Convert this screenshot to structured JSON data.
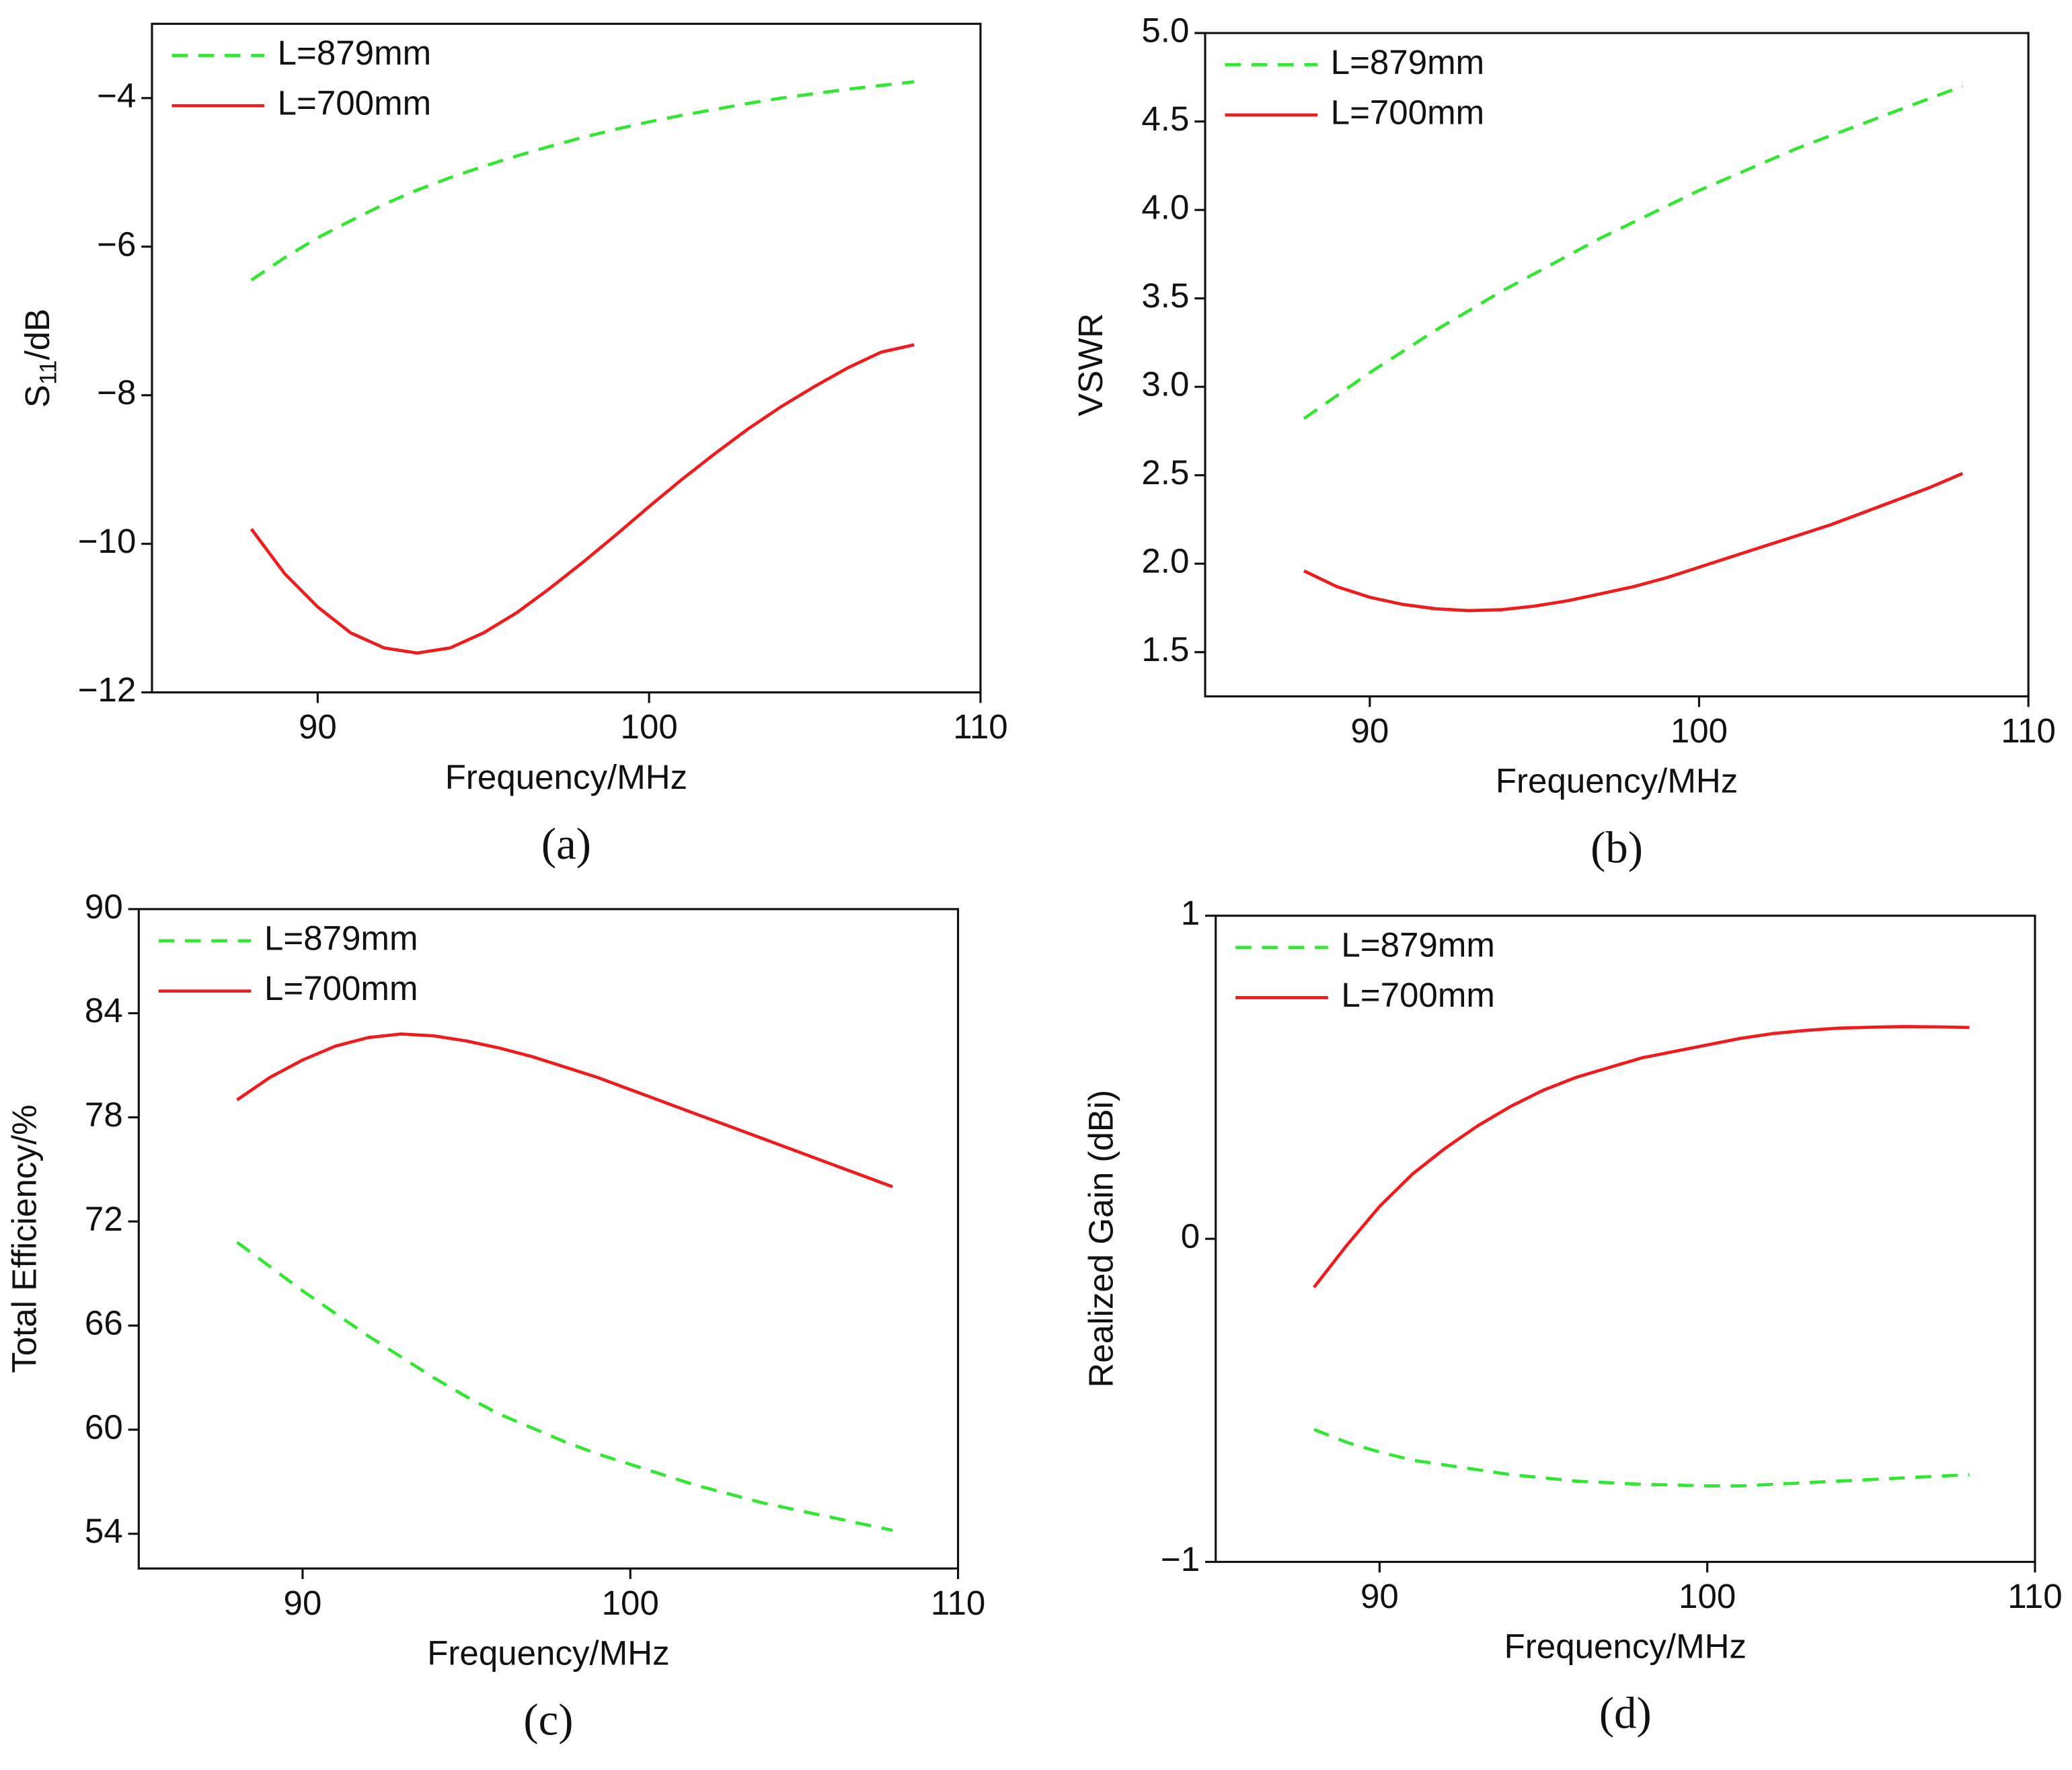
{
  "chart_data": [
    {
      "type": "line",
      "panel": "(a)",
      "xlabel": "Frequency/MHz",
      "ylabel": [
        "S",
        "11",
        "/dB"
      ],
      "x": [
        88,
        89,
        90,
        91,
        92,
        93,
        94,
        95,
        96,
        97,
        98,
        99,
        100,
        101,
        102,
        103,
        104,
        105,
        106,
        107,
        108
      ],
      "xlim": [
        85,
        110
      ],
      "xticks": [
        90,
        100,
        110
      ],
      "ylim": [
        -12,
        -3
      ],
      "yticks": [
        {
          "value": -12,
          "label": "−12"
        },
        {
          "value": -10,
          "label": "−10"
        },
        {
          "value": -8,
          "label": "−8"
        },
        {
          "value": -6,
          "label": "−6"
        },
        {
          "value": -4,
          "label": "−4"
        }
      ],
      "legend": "upper left",
      "series": [
        {
          "name": "L=879mm",
          "color": "#33e633",
          "dash": true,
          "values": [
            -6.45,
            -6.15,
            -5.88,
            -5.65,
            -5.43,
            -5.24,
            -5.07,
            -4.92,
            -4.78,
            -4.65,
            -4.53,
            -4.42,
            -4.32,
            -4.23,
            -4.15,
            -4.07,
            -4.0,
            -3.94,
            -3.88,
            -3.83,
            -3.78
          ]
        },
        {
          "name": "L=700mm",
          "color": "#ee1c1c",
          "dash": false,
          "values": [
            -9.8,
            -10.4,
            -10.85,
            -11.2,
            -11.4,
            -11.47,
            -11.4,
            -11.2,
            -10.93,
            -10.6,
            -10.25,
            -9.88,
            -9.5,
            -9.13,
            -8.78,
            -8.45,
            -8.15,
            -7.88,
            -7.63,
            -7.42,
            -7.32
          ]
        }
      ]
    },
    {
      "type": "line",
      "panel": "(b)",
      "xlabel": "Frequency/MHz",
      "ylabel": [
        "VSWR"
      ],
      "x": [
        88,
        89,
        90,
        91,
        92,
        93,
        94,
        95,
        96,
        97,
        98,
        99,
        100,
        101,
        102,
        103,
        104,
        105,
        106,
        107,
        108
      ],
      "xlim": [
        85,
        110
      ],
      "xticks": [
        90,
        100,
        110
      ],
      "ylim": [
        1.25,
        5.0
      ],
      "yticks": [
        1.5,
        {
          "value": 2,
          "label": "2.0"
        },
        2.5,
        {
          "value": 3,
          "label": "3.0"
        },
        3.5,
        {
          "value": 4,
          "label": "4.0"
        },
        4.5,
        {
          "value": 5,
          "label": "5.0"
        }
      ],
      "legend": "upper left",
      "series": [
        {
          "name": "L=879mm",
          "color": "#33e633",
          "dash": true,
          "values": [
            2.82,
            2.95,
            3.08,
            3.2,
            3.32,
            3.43,
            3.54,
            3.64,
            3.74,
            3.84,
            3.93,
            4.02,
            4.11,
            4.19,
            4.27,
            4.35,
            4.42,
            4.49,
            4.56,
            4.63,
            4.7
          ]
        },
        {
          "name": "L=700mm",
          "color": "#ee1c1c",
          "dash": false,
          "values": [
            1.96,
            1.87,
            1.81,
            1.77,
            1.745,
            1.735,
            1.74,
            1.76,
            1.79,
            1.83,
            1.87,
            1.92,
            1.98,
            2.04,
            2.1,
            2.16,
            2.22,
            2.29,
            2.36,
            2.43,
            2.51
          ]
        }
      ]
    },
    {
      "type": "line",
      "panel": "(c)",
      "xlabel": "Frequency/MHz",
      "ylabel": [
        "Total Efficiency/%"
      ],
      "x": [
        88,
        89,
        90,
        91,
        92,
        93,
        94,
        95,
        96,
        97,
        98,
        99,
        100,
        101,
        102,
        103,
        104,
        105,
        106,
        107,
        108
      ],
      "xlim": [
        85,
        110
      ],
      "xticks": [
        90,
        100,
        110
      ],
      "ylim": [
        52,
        90
      ],
      "yticks": [
        54,
        60,
        66,
        72,
        78,
        84,
        90
      ],
      "legend": "upper left",
      "series": [
        {
          "name": "L=879mm",
          "color": "#33e633",
          "dash": true,
          "values": [
            70.8,
            69.4,
            68.0,
            66.7,
            65.4,
            64.2,
            63.0,
            61.9,
            60.9,
            60.1,
            59.3,
            58.6,
            58.0,
            57.4,
            56.8,
            56.3,
            55.8,
            55.4,
            55.0,
            54.6,
            54.2
          ]
        },
        {
          "name": "L=700mm",
          "color": "#ee1c1c",
          "dash": false,
          "values": [
            79.0,
            80.3,
            81.3,
            82.1,
            82.6,
            82.8,
            82.7,
            82.4,
            82.0,
            81.5,
            80.9,
            80.3,
            79.6,
            78.9,
            78.2,
            77.5,
            76.8,
            76.1,
            75.4,
            74.7,
            74.0
          ]
        }
      ]
    },
    {
      "type": "line",
      "panel": "(d)",
      "xlabel": "Frequency/MHz",
      "ylabel": [
        "Realized Gain (dBi)"
      ],
      "x": [
        88,
        89,
        90,
        91,
        92,
        93,
        94,
        95,
        96,
        97,
        98,
        99,
        100,
        101,
        102,
        103,
        104,
        105,
        106,
        107,
        108
      ],
      "xlim": [
        85,
        110
      ],
      "xticks": [
        90,
        100,
        110
      ],
      "ylim": [
        -1,
        1
      ],
      "yticks": [
        {
          "value": -1,
          "label": "−1"
        },
        0,
        1
      ],
      "legend": "upper left",
      "series": [
        {
          "name": "L=879mm",
          "color": "#33e633",
          "dash": true,
          "values": [
            -0.59,
            -0.63,
            -0.66,
            -0.685,
            -0.7,
            -0.715,
            -0.73,
            -0.74,
            -0.75,
            -0.755,
            -0.76,
            -0.762,
            -0.765,
            -0.765,
            -0.76,
            -0.755,
            -0.75,
            -0.745,
            -0.74,
            -0.735,
            -0.73
          ]
        },
        {
          "name": "L=700mm",
          "color": "#ee1c1c",
          "dash": false,
          "values": [
            -0.15,
            -0.02,
            0.1,
            0.2,
            0.28,
            0.35,
            0.41,
            0.46,
            0.5,
            0.53,
            0.56,
            0.58,
            0.6,
            0.62,
            0.635,
            0.645,
            0.652,
            0.655,
            0.657,
            0.656,
            0.654
          ]
        }
      ]
    }
  ]
}
